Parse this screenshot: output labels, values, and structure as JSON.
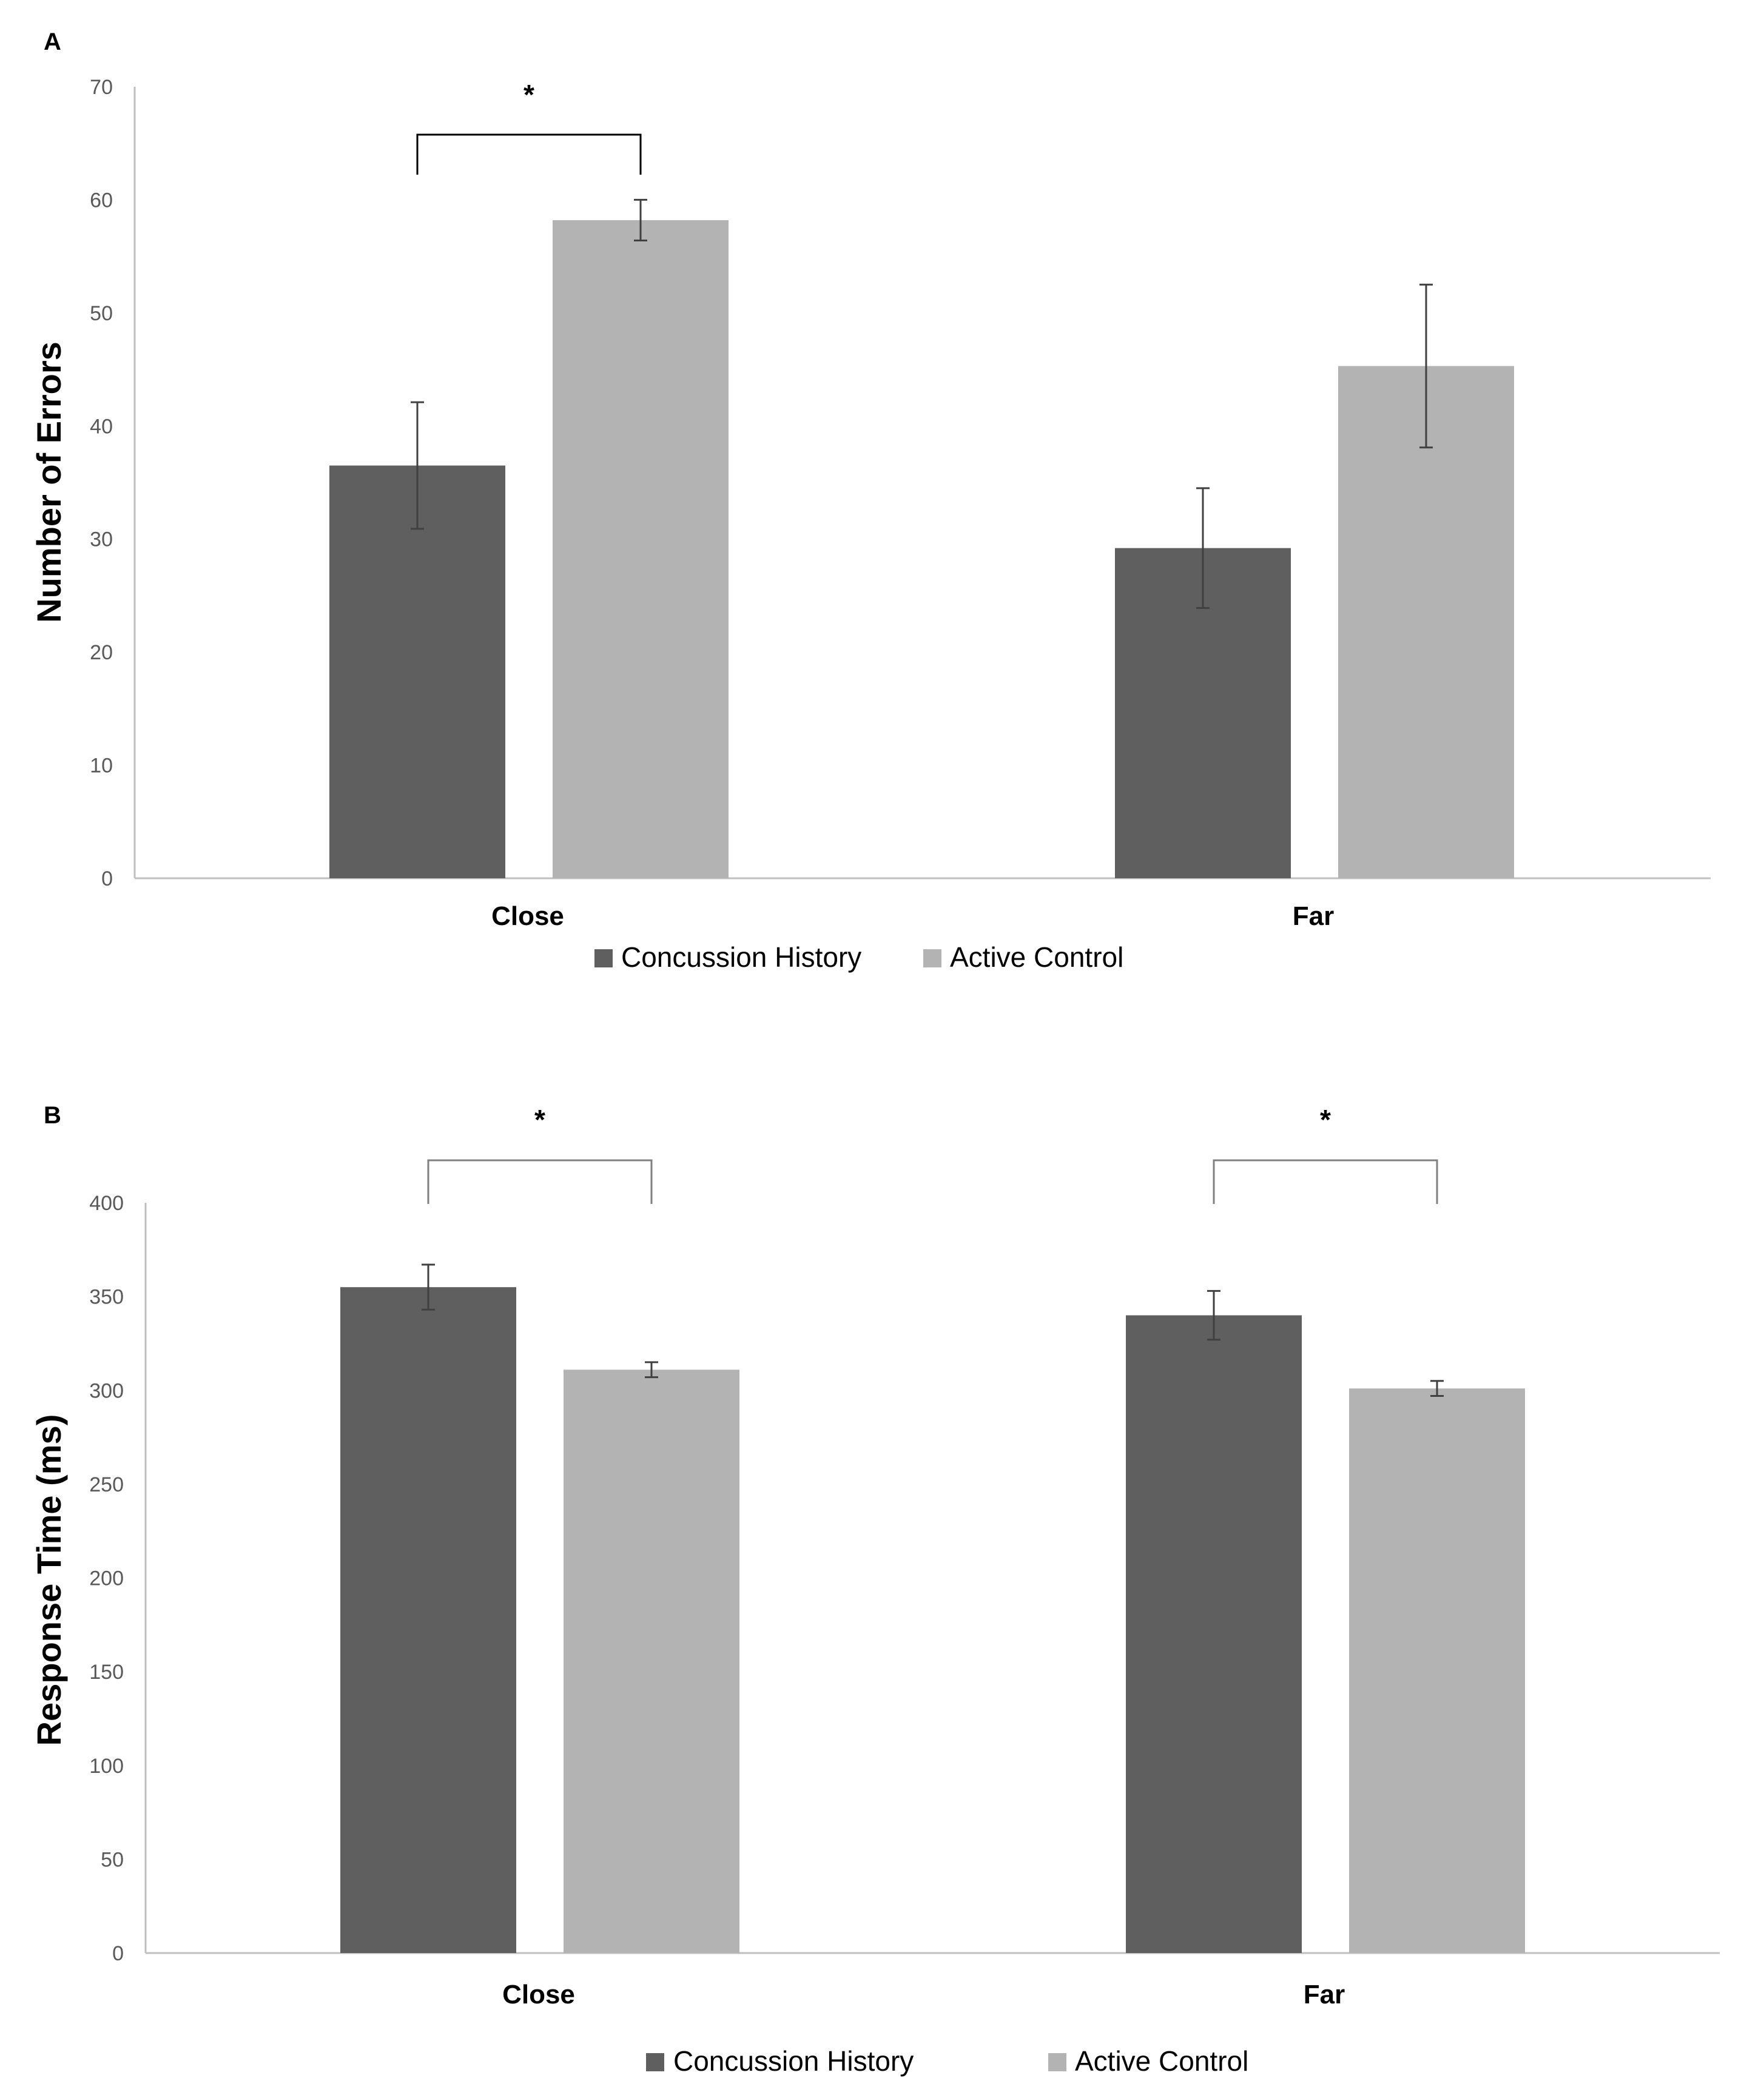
{
  "colors": {
    "concussion": "#5f5f5f",
    "control": "#b3b3b3",
    "axis": "#bfbfbf",
    "error_bar": "#404040",
    "bracket": "#808080"
  },
  "chart_data": [
    {
      "panel_label": "A",
      "type": "bar",
      "categories": [
        "Close",
        "Far"
      ],
      "series": [
        {
          "name": "Concussion History",
          "values": [
            36.5,
            29.2
          ],
          "errors": [
            5.6,
            5.3
          ]
        },
        {
          "name": "Active Control",
          "values": [
            58.2,
            45.3
          ],
          "errors": [
            1.8,
            7.2
          ]
        }
      ],
      "ylabel": "Number of Errors",
      "ylim": [
        0,
        70
      ],
      "yticks": [
        "0",
        "10",
        "20",
        "30",
        "40",
        "50",
        "60",
        "70"
      ],
      "significance": [
        {
          "category_index": 0,
          "label": "*"
        }
      ],
      "legend": [
        "Concussion History",
        "Active Control"
      ]
    },
    {
      "panel_label": "B",
      "type": "bar",
      "categories": [
        "Close",
        "Far"
      ],
      "series": [
        {
          "name": "Concussion History",
          "values": [
            355,
            340
          ],
          "errors": [
            12,
            13
          ]
        },
        {
          "name": "Active Control",
          "values": [
            311,
            301
          ],
          "errors": [
            4,
            4
          ]
        }
      ],
      "ylabel": "Response Time (ms)",
      "ylim": [
        0,
        400
      ],
      "yticks": [
        "0",
        "50",
        "100",
        "150",
        "200",
        "250",
        "300",
        "350",
        "400"
      ],
      "significance": [
        {
          "category_index": 0,
          "label": "*"
        },
        {
          "category_index": 1,
          "label": "*"
        }
      ],
      "legend": [
        "Concussion History",
        "Active Control"
      ]
    }
  ]
}
